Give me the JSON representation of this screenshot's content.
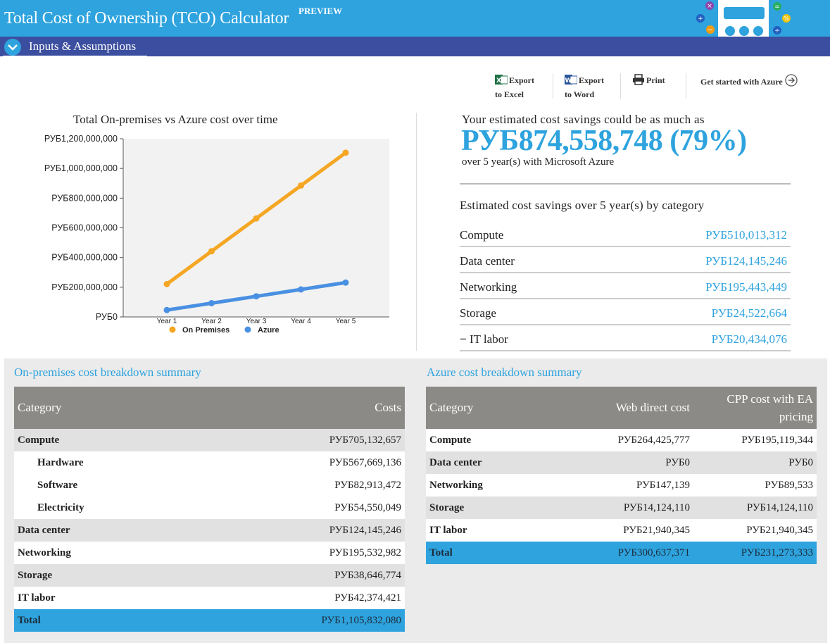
{
  "header": {
    "title": "Total Cost of Ownership (TCO) Calculator",
    "badge": "PREVIEW",
    "section_label": "Inputs & Assumptions"
  },
  "toolbar": {
    "export_excel": [
      "Export",
      "to Excel"
    ],
    "export_word": [
      "Export",
      "to Word"
    ],
    "print": "Print",
    "get_started": "Get started with Azure"
  },
  "colors": {
    "brand": "#2ea3de",
    "navy": "#3c4e9f",
    "on_premises": "#f5a623",
    "azure": "#4a90e2"
  },
  "chart_title": "Total On-premises vs Azure cost over time",
  "chart_data": {
    "type": "line",
    "title": "Total On-premises vs Azure cost over time",
    "categories": [
      "Year 1",
      "Year 2",
      "Year 3",
      "Year 4",
      "Year 5"
    ],
    "y_ticks": [
      "РУБ1,200,000,000",
      "РУБ1,000,000,000",
      "РУБ800,000,000",
      "РУБ600,000,000",
      "РУБ400,000,000",
      "РУБ200,000,000",
      "РУБ0"
    ],
    "ylim": [
      0,
      1200000000
    ],
    "series": [
      {
        "name": "On Premises",
        "color": "#f5a623",
        "values": [
          221166416,
          442332832,
          663499248,
          884665664,
          1105832080
        ]
      },
      {
        "name": "Azure",
        "color": "#4a90e2",
        "values": [
          46254667,
          92509333,
          138764000,
          185018666,
          231273333
        ]
      }
    ],
    "legend": "bottom"
  },
  "savings": {
    "intro": "Your estimated cost savings could be as much as",
    "amount": "РУБ874,558,748 (79%)",
    "period": "over 5 year(s) with Microsoft Azure",
    "by_category_title": "Estimated cost savings over 5 year(s) by category",
    "rows": [
      {
        "label": "Compute",
        "value": "РУБ510,013,312"
      },
      {
        "label": "Data center",
        "value": "РУБ124,145,246"
      },
      {
        "label": "Networking",
        "value": "РУБ195,443,449"
      },
      {
        "label": "Storage",
        "value": "РУБ24,522,664"
      },
      {
        "label": "IT labor",
        "value": "РУБ20,434,076"
      }
    ]
  },
  "onprem": {
    "title": "On-premises cost breakdown summary",
    "headers": [
      "Category",
      "Costs"
    ],
    "rows": [
      {
        "label": "Compute",
        "value": "РУБ705,132,657"
      },
      {
        "label": "Hardware",
        "value": "РУБ567,669,136"
      },
      {
        "label": "Software",
        "value": "РУБ82,913,472"
      },
      {
        "label": "Electricity",
        "value": "РУБ54,550,049"
      },
      {
        "label": "Data center",
        "value": "РУБ124,145,246"
      },
      {
        "label": "Networking",
        "value": "РУБ195,532,982"
      },
      {
        "label": "Storage",
        "value": "РУБ38,646,774"
      },
      {
        "label": "IT labor",
        "value": "РУБ42,374,421"
      },
      {
        "label": "Total",
        "value": "РУБ1,105,832,080"
      }
    ]
  },
  "azure": {
    "title": "Azure cost breakdown summary",
    "headers": [
      "Category",
      "Web direct cost",
      "CPP cost with EA",
      "pricing"
    ],
    "rows": [
      {
        "label": "Compute",
        "web": "РУБ264,425,777",
        "cpp": "РУБ195,119,344"
      },
      {
        "label": "Data center",
        "web": "РУБ0",
        "cpp": "РУБ0"
      },
      {
        "label": "Networking",
        "web": "РУБ147,139",
        "cpp": "РУБ89,533"
      },
      {
        "label": "Storage",
        "web": "РУБ14,124,110",
        "cpp": "РУБ14,124,110"
      },
      {
        "label": "IT labor",
        "web": "РУБ21,940,345",
        "cpp": "РУБ21,940,345"
      },
      {
        "label": "Total",
        "web": "РУБ300,637,371",
        "cpp": "РУБ231,273,333"
      }
    ]
  }
}
